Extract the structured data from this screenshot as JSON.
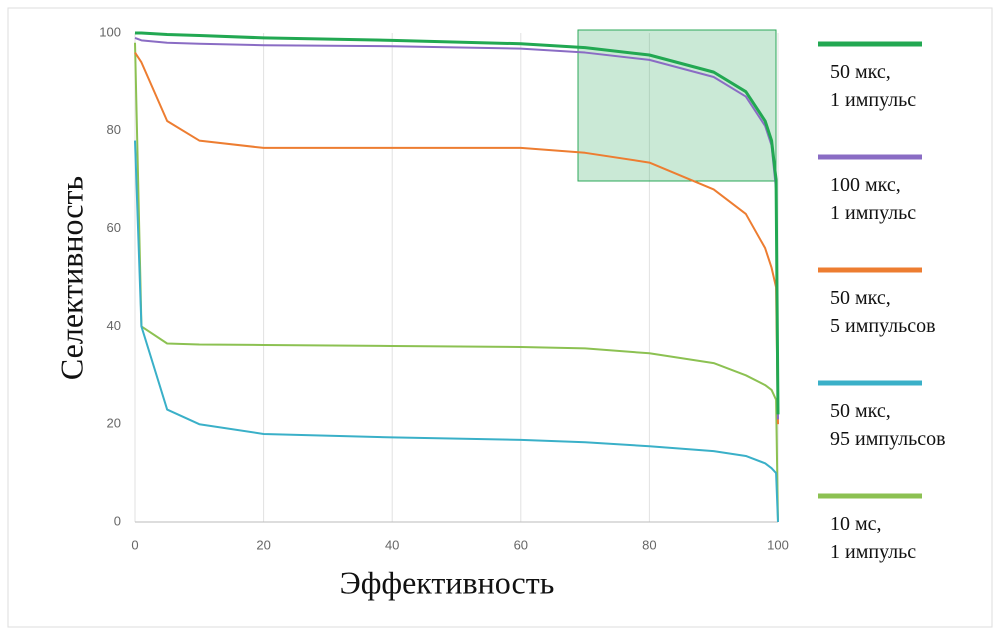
{
  "chart_data": {
    "type": "line",
    "xlabel": "Эффективность",
    "ylabel": "Селективность",
    "x": [
      0,
      1,
      5,
      10,
      20,
      40,
      60,
      70,
      80,
      90,
      95,
      98,
      99,
      99.7,
      100
    ],
    "series": [
      {
        "name": "50 мкс,\n1 импульс",
        "color": "#22a852",
        "values": [
          100,
          100,
          99.7,
          99.5,
          99,
          98.5,
          97.8,
          97,
          95.5,
          92,
          88,
          82,
          78,
          70,
          22
        ]
      },
      {
        "name": "100 мкс,\n1 импульс",
        "color": "#8a6cc4",
        "values": [
          99,
          98.5,
          98,
          97.8,
          97.5,
          97.3,
          96.8,
          96,
          94.5,
          91,
          87,
          81,
          77,
          68,
          21
        ]
      },
      {
        "name": "50 мкс,\n5 импульсов",
        "color": "#ed7d31",
        "values": [
          96,
          94,
          82,
          78,
          76.5,
          76.5,
          76.5,
          75.5,
          73.5,
          68,
          63,
          56,
          52,
          48,
          20
        ]
      },
      {
        "name": "50 мкс,\n95 импульсов",
        "color": "#3ab0c8",
        "values": [
          78,
          40,
          23,
          20,
          18,
          17.3,
          16.8,
          16.3,
          15.5,
          14.5,
          13.5,
          12,
          11,
          10,
          0
        ]
      },
      {
        "name": "10 мс,\n1 импульс",
        "color": "#8cc152",
        "values": [
          98,
          40,
          36.5,
          36.3,
          36.2,
          36,
          35.8,
          35.5,
          34.5,
          32.5,
          30,
          28,
          27,
          25,
          0
        ]
      }
    ],
    "xlim": [
      0,
      100
    ],
    "ylim": [
      0,
      100
    ],
    "xticks": [
      0,
      20,
      40,
      60,
      80,
      100
    ],
    "yticks": [
      0,
      20,
      40,
      60,
      80,
      100
    ],
    "grid": "x",
    "legend": "right"
  }
}
